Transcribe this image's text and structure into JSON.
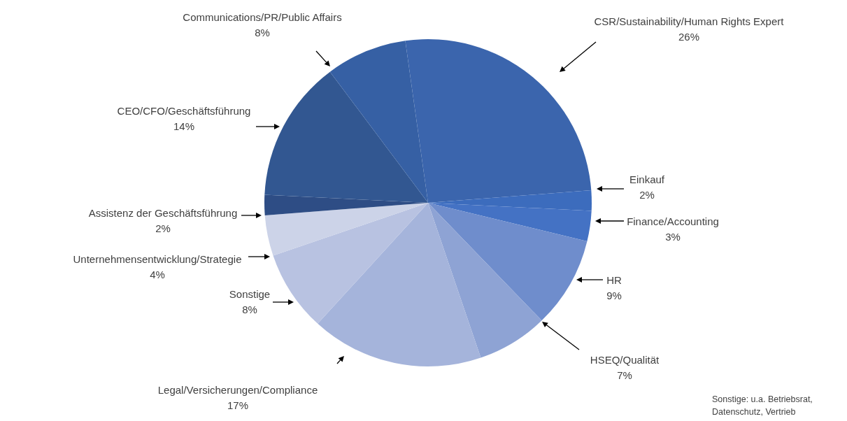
{
  "chart_data": {
    "type": "pie",
    "categories": [
      "CSR/Sustainability/Human Rights Expert",
      "Einkauf",
      "Finance/Accounting",
      "HR",
      "HSEQ/Qualität",
      "Legal/Versicherungen/Compliance",
      "Sonstige",
      "Unternehmensentwicklung/Strategie",
      "Assistenz der Geschäftsführung",
      "CEO/CFO/Geschäftsführung",
      "Communications/PR/Public Affairs"
    ],
    "values": [
      26,
      2,
      3,
      9,
      7,
      17,
      8,
      4,
      2,
      14,
      8
    ],
    "value_labels": [
      "26%",
      "2%",
      "3%",
      "9%",
      "7%",
      "17%",
      "8%",
      "4%",
      "2%",
      "14%",
      "8%"
    ],
    "colors": [
      "#3b65ad",
      "#3c6cbd",
      "#4472c4",
      "#6f8dcc",
      "#8ea3d4",
      "#a5b4db",
      "#b8c2e1",
      "#ccd3e8",
      "#2e4d85",
      "#325791",
      "#3660a4"
    ],
    "annotations": [
      "Sonstige: u.a. Betriebsrat, Datenschutz, Vertrieb"
    ]
  }
}
